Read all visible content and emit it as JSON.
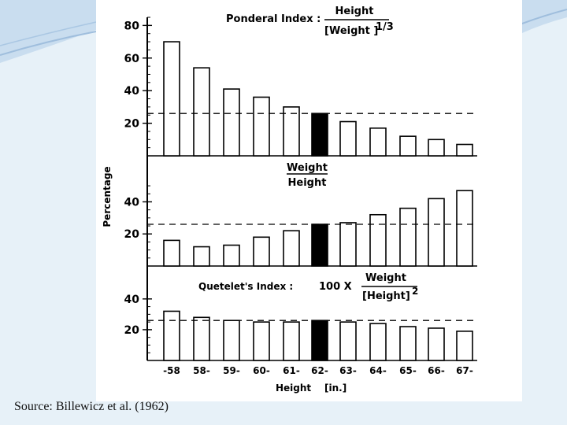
{
  "theme": {
    "accent": "#8fb3d6",
    "background": "#e7f1f8"
  },
  "source": "Source: Billewicz et al. (1962)",
  "chart_data": {
    "type": "bar",
    "ylabel": "Percentage",
    "xlabel": "Height",
    "xunit": "[in.]",
    "categories": [
      "-58",
      "58-",
      "59-",
      "60-",
      "61-",
      "62-",
      "63-",
      "64-",
      "65-",
      "66-",
      "67-"
    ],
    "reference_index": 5,
    "panels": [
      {
        "label": {
          "prefix": "Ponderal Index :",
          "numerator": "Height",
          "denominator": "[Weight ]",
          "exponent": "1/3"
        },
        "ylim": [
          0,
          85
        ],
        "yticks": [
          "80",
          "60",
          "40",
          "20"
        ],
        "ytick_values": [
          80,
          60,
          40,
          20
        ],
        "values": [
          70,
          54,
          41,
          36,
          30,
          26,
          21,
          17,
          12,
          10,
          7
        ],
        "reference_line": 26
      },
      {
        "label": {
          "numerator": "Weight",
          "denominator": "Height"
        },
        "ylim": [
          0,
          52
        ],
        "yticks": [
          "40",
          "20"
        ],
        "ytick_values": [
          40,
          20
        ],
        "values": [
          16,
          12,
          13,
          18,
          22,
          26,
          27,
          32,
          36,
          42,
          47
        ],
        "reference_line": 26
      },
      {
        "label": {
          "prefix": "Quetelet's Index :",
          "multiplier": "100 X",
          "numerator": "Weight",
          "denominator": "[Height]",
          "exponent": "2"
        },
        "ylim": [
          0,
          44
        ],
        "yticks": [
          "40",
          "20"
        ],
        "ytick_values": [
          40,
          20
        ],
        "values": [
          32,
          28,
          26,
          25,
          25,
          26,
          25,
          24,
          22,
          21,
          19
        ],
        "reference_line": 26
      }
    ]
  }
}
